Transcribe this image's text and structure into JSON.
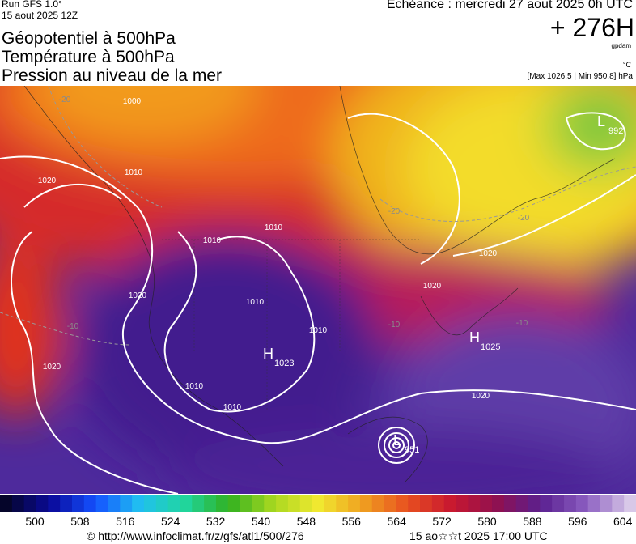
{
  "header": {
    "run": "Run GFS 1.0°",
    "run_date": "15 aout 2025 12Z",
    "valid": "Echéance : mercredi 27 aout 2025 0h UTC",
    "lead": "+ 276H",
    "unit": "gpdam",
    "temp_unit": "°C",
    "pressure_range": "[Max 1026.5 | Min 950.8] hPa",
    "titles": [
      "Géopotentiel à 500hPa",
      "Température à 500hPa",
      "Pression au niveau de la mer"
    ]
  },
  "map": {
    "centers": [
      {
        "symbol": "H",
        "value": "1025"
      },
      {
        "symbol": "H",
        "value": "1023"
      },
      {
        "symbol": "L",
        "value": "951"
      },
      {
        "symbol": "L",
        "value": "992"
      }
    ],
    "contour_labels": [
      "1000",
      "1010",
      "1020",
      "1010",
      "1010",
      "1010",
      "1010",
      "1020",
      "1020",
      "1020",
      "1020",
      "1020",
      "1010",
      "1010",
      "-20",
      "-20",
      "-20",
      "-10",
      "-10",
      "-10"
    ]
  },
  "colorbar": {
    "labels": [
      "500",
      "508",
      "516",
      "524",
      "532",
      "540",
      "548",
      "556",
      "564",
      "572",
      "580",
      "588",
      "596",
      "604"
    ]
  },
  "footer": {
    "source": "© http://www.infoclimat.fr/z/gfs/atl1/500/276",
    "timestamp": "15 ao☆☆t 2025 17:00 UTC"
  }
}
